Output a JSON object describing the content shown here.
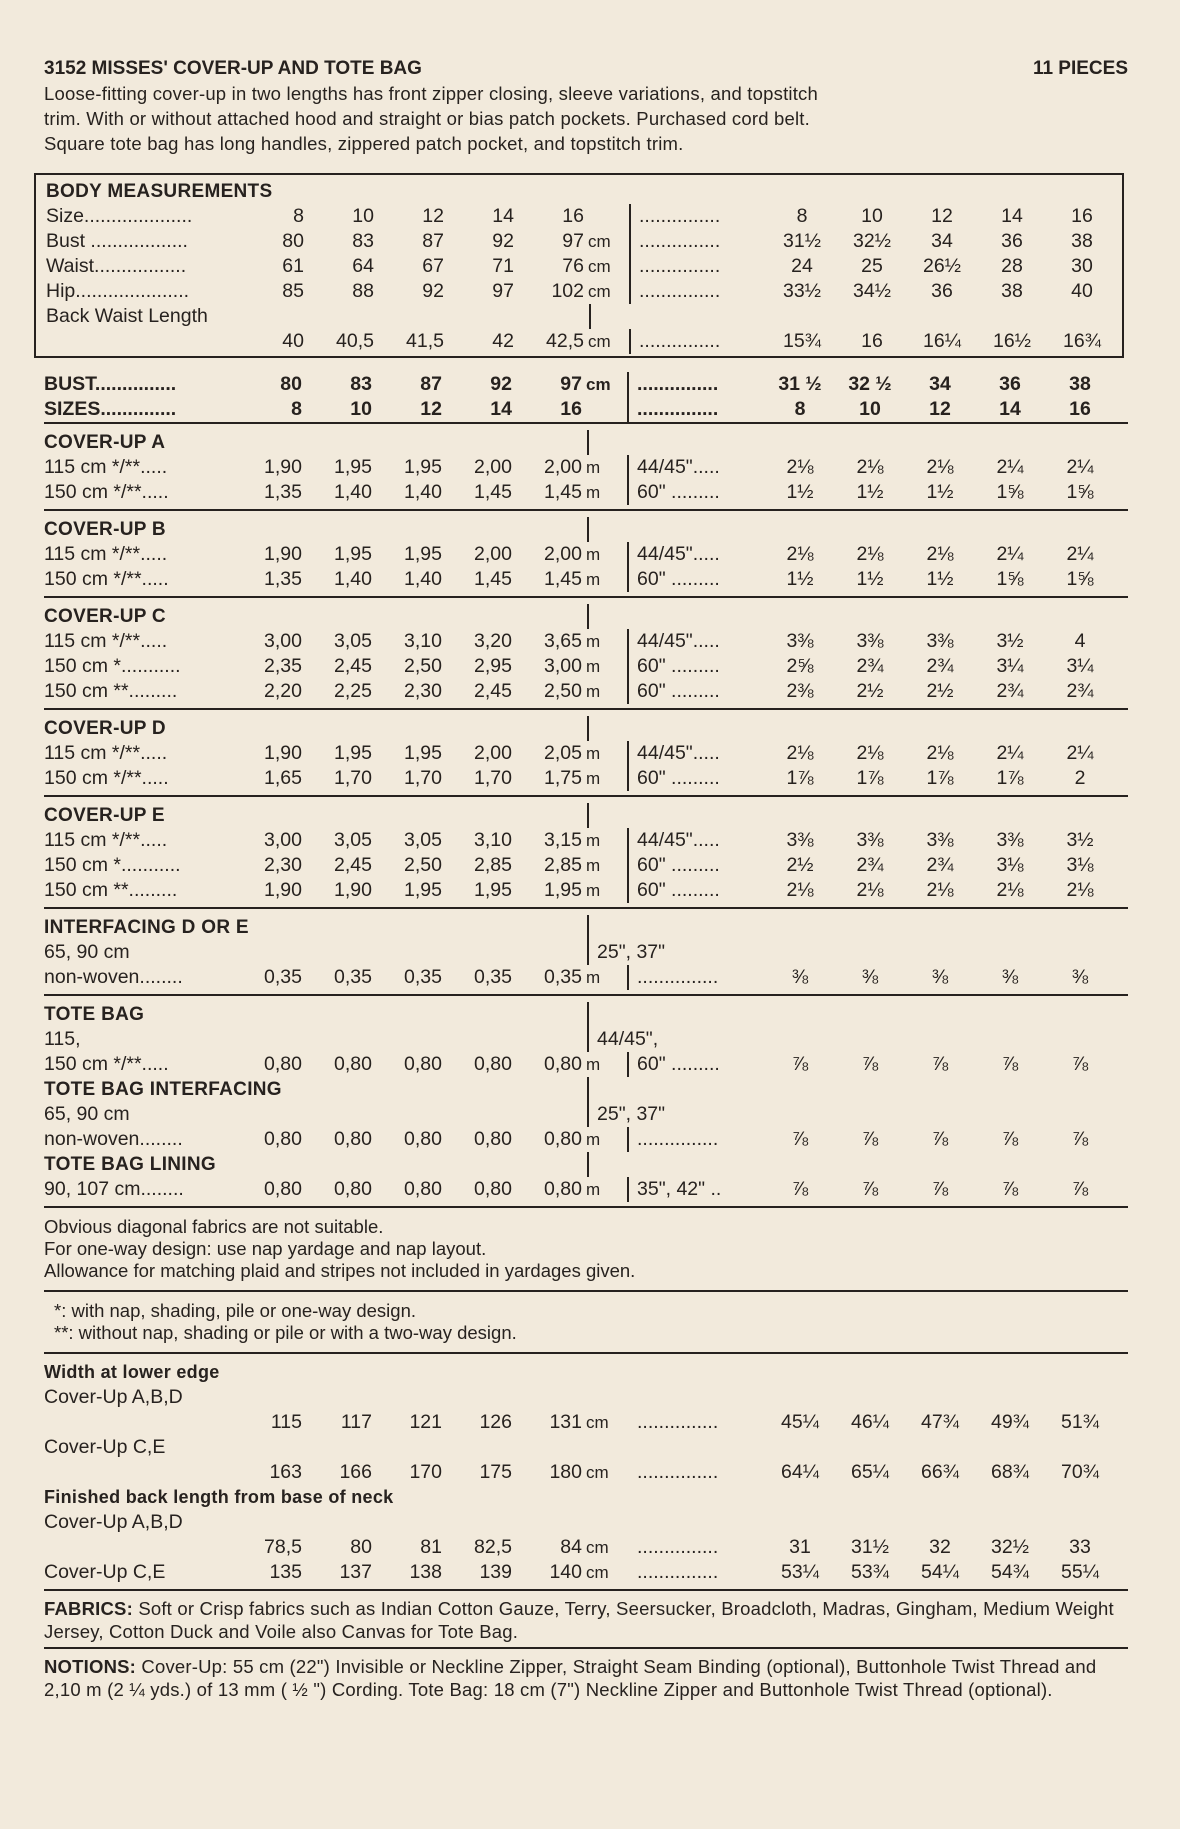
{
  "header": {
    "title": "3152  MISSES' COVER-UP AND TOTE BAG",
    "pieces": "11 PIECES",
    "description": [
      "Loose-fitting cover-up in two lengths has front zipper closing, sleeve variations, and topstitch",
      "trim. With or without attached hood and straight or bias patch pockets. Purchased cord belt.",
      "Square tote bag has long handles, zippered patch pocket, and topstitch trim."
    ]
  },
  "body_measurements": {
    "title": "BODY MEASUREMENTS",
    "rows": [
      {
        "label": "Size....................",
        "metric": [
          "8",
          "10",
          "12",
          "14",
          "16"
        ],
        "unit": "",
        "ilabel": "...............",
        "imperial": [
          "8",
          "10",
          "12",
          "14",
          "16"
        ]
      },
      {
        "label": "Bust ..................",
        "metric": [
          "80",
          "83",
          "87",
          "92",
          "97"
        ],
        "unit": "cm",
        "ilabel": "...............",
        "imperial": [
          "31½",
          "32½",
          "34",
          "36",
          "38"
        ]
      },
      {
        "label": "Waist.................",
        "metric": [
          "61",
          "64",
          "67",
          "71",
          "76"
        ],
        "unit": "cm",
        "ilabel": "...............",
        "imperial": [
          "24",
          "25",
          "26½",
          "28",
          "30"
        ]
      },
      {
        "label": "Hip.....................",
        "metric": [
          "85",
          "88",
          "92",
          "97",
          "102"
        ],
        "unit": "cm",
        "ilabel": "...............",
        "imperial": [
          "33½",
          "34½",
          "36",
          "38",
          "40"
        ]
      },
      {
        "pre": "Back Waist Length",
        "label": "",
        "metric": [
          "40",
          "40,5",
          "41,5",
          "42",
          "42,5"
        ],
        "unit": "cm",
        "ilabel": "...............",
        "imperial": [
          "15¾",
          "16",
          "16¼",
          "16½",
          "16¾"
        ]
      }
    ]
  },
  "bust_sizes": [
    {
      "label": "BUST...............",
      "metric": [
        "80",
        "83",
        "87",
        "92",
        "97"
      ],
      "unit": "cm",
      "ilabel": "...............",
      "imperial": [
        "31 ½",
        "32 ½",
        "34",
        "36",
        "38"
      ]
    },
    {
      "label": "SIZES..............",
      "metric": [
        "8",
        "10",
        "12",
        "14",
        "16"
      ],
      "unit": "",
      "ilabel": "...............",
      "imperial": [
        "8",
        "10",
        "12",
        "14",
        "16"
      ]
    }
  ],
  "yardage": [
    {
      "title": "COVER-UP A",
      "rows": [
        {
          "label": "115 cm */**.....",
          "metric": [
            "1,90",
            "1,95",
            "1,95",
            "2,00",
            "2,00"
          ],
          "unit": "m",
          "ilabel": "44/45\".....",
          "imperial": [
            "2⅛",
            "2⅛",
            "2⅛",
            "2¼",
            "2¼"
          ]
        },
        {
          "label": "150 cm */**.....",
          "metric": [
            "1,35",
            "1,40",
            "1,40",
            "1,45",
            "1,45"
          ],
          "unit": "m",
          "ilabel": "60\" .........",
          "imperial": [
            "1½",
            "1½",
            "1½",
            "1⅝",
            "1⅝"
          ]
        }
      ]
    },
    {
      "title": "COVER-UP B",
      "rows": [
        {
          "label": "115 cm */**.....",
          "metric": [
            "1,90",
            "1,95",
            "1,95",
            "2,00",
            "2,00"
          ],
          "unit": "m",
          "ilabel": "44/45\".....",
          "imperial": [
            "2⅛",
            "2⅛",
            "2⅛",
            "2¼",
            "2¼"
          ]
        },
        {
          "label": "150 cm */**.....",
          "metric": [
            "1,35",
            "1,40",
            "1,40",
            "1,45",
            "1,45"
          ],
          "unit": "m",
          "ilabel": "60\" .........",
          "imperial": [
            "1½",
            "1½",
            "1½",
            "1⅝",
            "1⅝"
          ]
        }
      ]
    },
    {
      "title": "COVER-UP C",
      "rows": [
        {
          "label": "115 cm */**.....",
          "metric": [
            "3,00",
            "3,05",
            "3,10",
            "3,20",
            "3,65"
          ],
          "unit": "m",
          "ilabel": "44/45\".....",
          "imperial": [
            "3⅜",
            "3⅜",
            "3⅜",
            "3½",
            "4"
          ]
        },
        {
          "label": "150 cm *...........",
          "metric": [
            "2,35",
            "2,45",
            "2,50",
            "2,95",
            "3,00"
          ],
          "unit": "m",
          "ilabel": "60\" .........",
          "imperial": [
            "2⅝",
            "2¾",
            "2¾",
            "3¼",
            "3¼"
          ]
        },
        {
          "label": "150 cm **.........",
          "metric": [
            "2,20",
            "2,25",
            "2,30",
            "2,45",
            "2,50"
          ],
          "unit": "m",
          "ilabel": "60\" .........",
          "imperial": [
            "2⅜",
            "2½",
            "2½",
            "2¾",
            "2¾"
          ]
        }
      ]
    },
    {
      "title": "COVER-UP D",
      "rows": [
        {
          "label": "115 cm */**.....",
          "metric": [
            "1,90",
            "1,95",
            "1,95",
            "2,00",
            "2,05"
          ],
          "unit": "m",
          "ilabel": "44/45\".....",
          "imperial": [
            "2⅛",
            "2⅛",
            "2⅛",
            "2¼",
            "2¼"
          ]
        },
        {
          "label": "150 cm */**.....",
          "metric": [
            "1,65",
            "1,70",
            "1,70",
            "1,70",
            "1,75"
          ],
          "unit": "m",
          "ilabel": "60\" .........",
          "imperial": [
            "1⅞",
            "1⅞",
            "1⅞",
            "1⅞",
            "2"
          ]
        }
      ]
    },
    {
      "title": "COVER-UP E",
      "rows": [
        {
          "label": "115 cm */**.....",
          "metric": [
            "3,00",
            "3,05",
            "3,05",
            "3,10",
            "3,15"
          ],
          "unit": "m",
          "ilabel": "44/45\".....",
          "imperial": [
            "3⅜",
            "3⅜",
            "3⅜",
            "3⅜",
            "3½"
          ]
        },
        {
          "label": "150 cm *...........",
          "metric": [
            "2,30",
            "2,45",
            "2,50",
            "2,85",
            "2,85"
          ],
          "unit": "m",
          "ilabel": "60\" .........",
          "imperial": [
            "2½",
            "2¾",
            "2¾",
            "3⅛",
            "3⅛"
          ]
        },
        {
          "label": "150 cm **.........",
          "metric": [
            "1,90",
            "1,90",
            "1,95",
            "1,95",
            "1,95"
          ],
          "unit": "m",
          "ilabel": "60\" .........",
          "imperial": [
            "2⅛",
            "2⅛",
            "2⅛",
            "2⅛",
            "2⅛"
          ]
        }
      ]
    },
    {
      "title": "INTERFACING D OR E",
      "rows": [
        {
          "pre": "65, 90 cm",
          "ipre": "25\", 37\"",
          "label": "non-woven........",
          "metric": [
            "0,35",
            "0,35",
            "0,35",
            "0,35",
            "0,35"
          ],
          "unit": "m",
          "ilabel": "...............",
          "imperial": [
            "⅜",
            "⅜",
            "⅜",
            "⅜",
            "⅜"
          ]
        }
      ]
    },
    {
      "title": "TOTE BAG",
      "norule": true,
      "rows": [
        {
          "pre": "115,",
          "ipre": "44/45\",",
          "label": "150 cm */**.....",
          "metric": [
            "0,80",
            "0,80",
            "0,80",
            "0,80",
            "0,80"
          ],
          "unit": "m",
          "ilabel": "60\" .........",
          "imperial": [
            "⅞",
            "⅞",
            "⅞",
            "⅞",
            "⅞"
          ]
        }
      ]
    },
    {
      "title": "TOTE BAG INTERFACING",
      "norule": true,
      "rows": [
        {
          "pre": "65, 90 cm",
          "ipre": "25\", 37\"",
          "label": "non-woven........",
          "metric": [
            "0,80",
            "0,80",
            "0,80",
            "0,80",
            "0,80"
          ],
          "unit": "m",
          "ilabel": "...............",
          "imperial": [
            "⅞",
            "⅞",
            "⅞",
            "⅞",
            "⅞"
          ]
        }
      ]
    },
    {
      "title": "TOTE BAG LINING",
      "rows": [
        {
          "label": "90, 107 cm........",
          "metric": [
            "0,80",
            "0,80",
            "0,80",
            "0,80",
            "0,80"
          ],
          "unit": "m",
          "ilabel": "35\", 42\" ..",
          "imperial": [
            "⅞",
            "⅞",
            "⅞",
            "⅞",
            "⅞"
          ]
        }
      ]
    }
  ],
  "notes": [
    "Obvious diagonal fabrics are not suitable.",
    "For one-way design: use nap yardage and nap layout.",
    "Allowance for matching plaid and stripes not included in yardages given."
  ],
  "footnotes": [
    "*: with nap, shading, pile or one-way design.",
    "**: without nap, shading or pile or with a two-way design."
  ],
  "finished": {
    "groups": [
      {
        "title": "Width at lower edge",
        "rows": [
          {
            "pre": "Cover-Up A,B,D",
            "label": "",
            "metric": [
              "115",
              "117",
              "121",
              "126",
              "131"
            ],
            "unit": "cm",
            "ilabel": "...............",
            "imperial": [
              "45¼",
              "46¼",
              "47¾",
              "49¾",
              "51¾"
            ]
          },
          {
            "pre": "Cover-Up C,E",
            "label": "",
            "metric": [
              "163",
              "166",
              "170",
              "175",
              "180"
            ],
            "unit": "cm",
            "ilabel": "...............",
            "imperial": [
              "64¼",
              "65¼",
              "66¾",
              "68¾",
              "70¾"
            ]
          }
        ]
      },
      {
        "title": "Finished back length from base of neck",
        "rows": [
          {
            "pre": "Cover-Up A,B,D",
            "label": "",
            "metric": [
              "78,5",
              "80",
              "81",
              "82,5",
              "84"
            ],
            "unit": "cm",
            "ilabel": "...............",
            "imperial": [
              "31",
              "31½",
              "32",
              "32½",
              "33"
            ]
          },
          {
            "label": "Cover-Up C,E",
            "metric": [
              "135",
              "137",
              "138",
              "139",
              "140"
            ],
            "unit": "cm",
            "ilabel": "...............",
            "imperial": [
              "53¼",
              "53¾",
              "54¼",
              "54¾",
              "55¼"
            ]
          }
        ]
      }
    ]
  },
  "fabrics": {
    "label": "FABRICS:",
    "text": "Soft or Crisp fabrics such as Indian Cotton Gauze, Terry, Seersucker, Broadcloth, Madras, Gingham, Medium Weight Jersey, Cotton Duck and Voile also Canvas for Tote Bag."
  },
  "notions": {
    "label": "NOTIONS:",
    "text": "Cover-Up: 55 cm (22\") Invisible or Neckline Zipper, Straight Seam Binding (optional), Buttonhole Twist Thread and 2,10 m (2 ¼ yds.) of 13 mm ( ½ \") Cording. Tote Bag: 18 cm (7\") Neckline Zipper and Buttonhole Twist Thread (optional)."
  }
}
